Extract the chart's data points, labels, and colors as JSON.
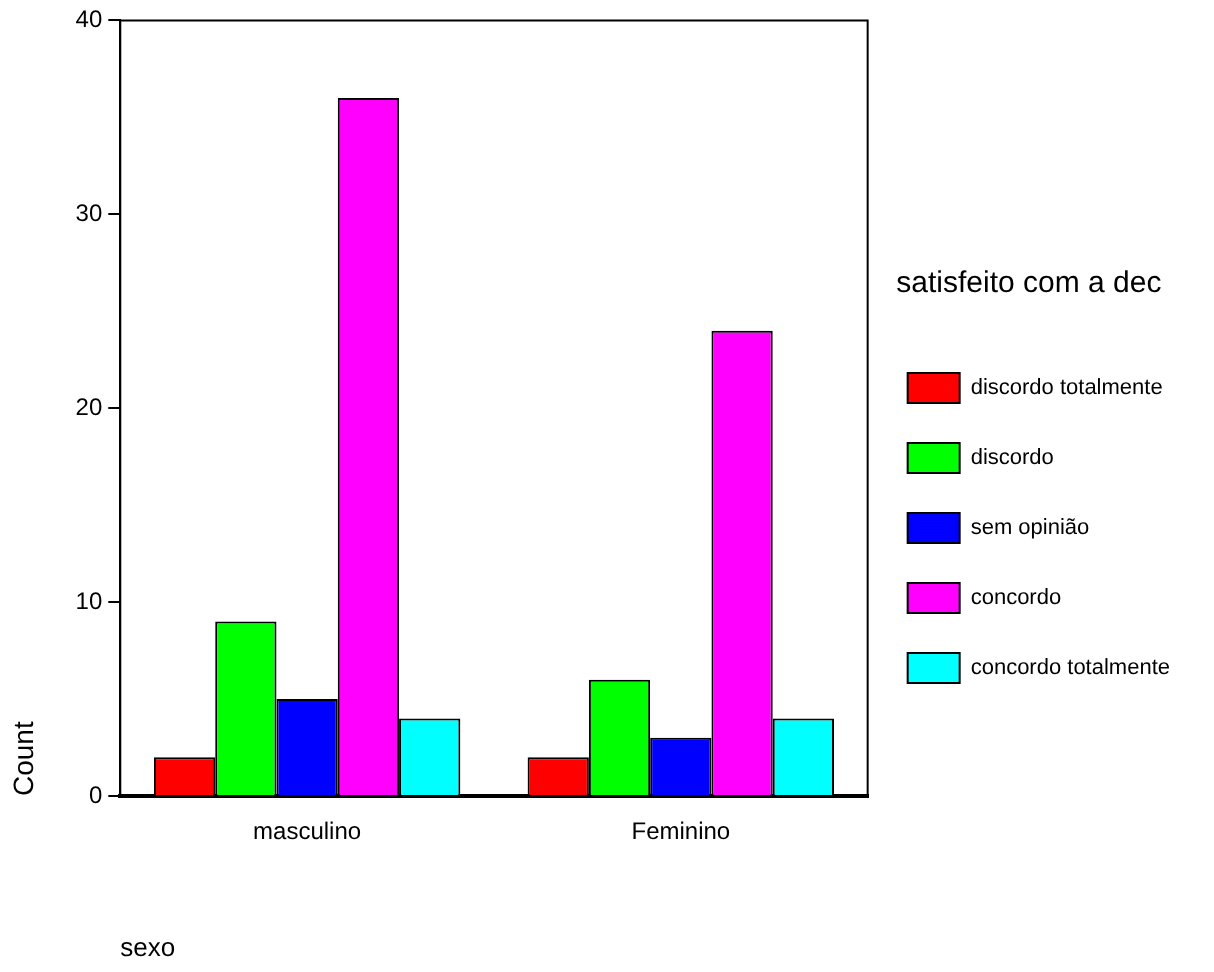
{
  "chart_data": {
    "type": "bar",
    "xlabel": "sexo",
    "ylabel": "Count",
    "legend_title": "satisfeito com a dec",
    "categories": [
      "masculino",
      "Feminino"
    ],
    "series": [
      {
        "name": "discordo totalmente",
        "color": "#ff0000",
        "values": [
          2,
          2
        ]
      },
      {
        "name": "discordo",
        "color": "#00ff00",
        "values": [
          9,
          6
        ]
      },
      {
        "name": "sem opinião",
        "color": "#0000ff",
        "values": [
          5,
          3
        ]
      },
      {
        "name": "concordo",
        "color": "#ff00ff",
        "values": [
          36,
          24
        ]
      },
      {
        "name": "concordo totalmente",
        "color": "#00ffff",
        "values": [
          4,
          4
        ]
      }
    ],
    "ylim": [
      0,
      40
    ],
    "yticks": [
      0,
      10,
      20,
      30,
      40
    ],
    "grid": false,
    "legend": "right"
  }
}
